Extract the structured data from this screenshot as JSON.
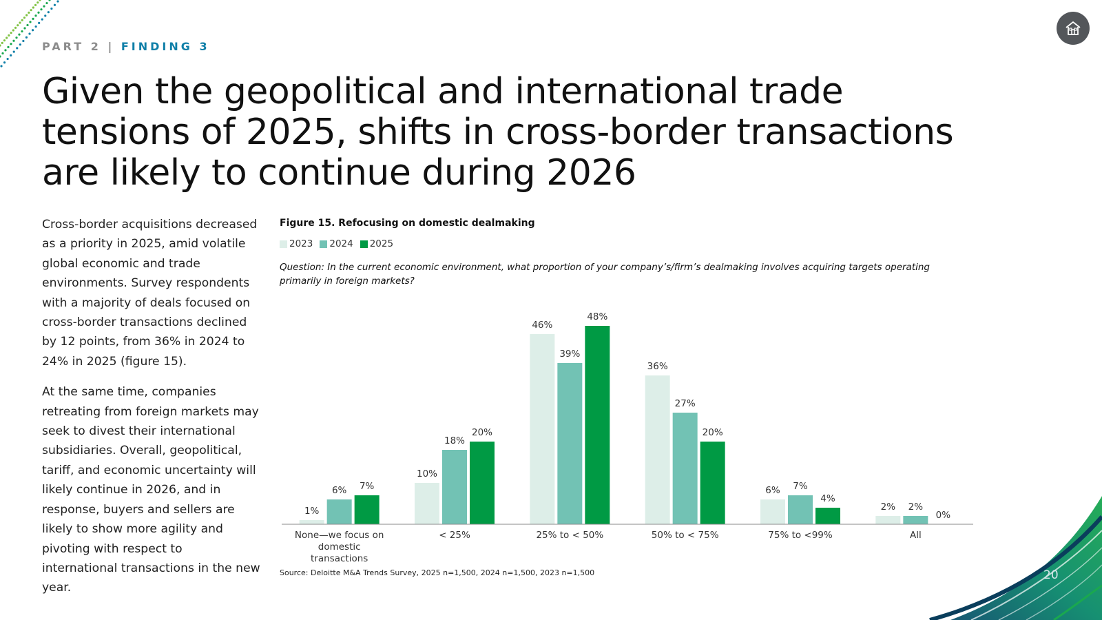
{
  "header": {
    "part": "PART 2",
    "separator": "|",
    "finding": "FINDING 3"
  },
  "title": "Given the geopolitical and international trade tensions of 2025, shifts in cross-border transactions are likely to continue during 2026",
  "body": {
    "paragraphs": [
      "Cross-border acquisitions decreased as a priority in 2025, amid volatile global economic and trade environments. Survey respondents with a majority of deals focused on cross-border transactions declined by 12 points, from 36% in 2024 to 24% in 2025 (figure 15).",
      "At the same time, companies retreating from foreign markets may seek to divest their international subsidiaries. Overall, geopolitical, tariff, and economic uncertainty will likely continue in 2026, and in response, buyers and sellers are likely to show more agility and pivoting with respect to international transactions in the new year."
    ]
  },
  "figure": {
    "title": "Figure 15. Refocusing on domestic dealmaking",
    "question": "Question: In the current economic environment, what proportion of your company’s/firm’s dealmaking involves acquiring targets operating primarily in foreign markets?",
    "source": "Source: Deloitte M&A Trends Survey, 2025 n=1,500, 2024 n=1,500, 2023 n=1,500"
  },
  "chart_data": {
    "type": "bar",
    "categories": [
      "None—we focus on domestic transactions",
      "< 25%",
      "25% to < 50%",
      "50% to < 75%",
      "75% to <99%",
      "All"
    ],
    "series": [
      {
        "name": "2023",
        "color": "#ddeee8",
        "values": [
          1,
          10,
          46,
          36,
          6,
          2
        ]
      },
      {
        "name": "2024",
        "color": "#72c2b4",
        "values": [
          6,
          18,
          39,
          27,
          7,
          2
        ]
      },
      {
        "name": "2025",
        "color": "#009a44",
        "values": [
          7,
          20,
          48,
          20,
          4,
          0
        ]
      }
    ],
    "value_suffix": "%",
    "ylim": [
      0,
      50
    ],
    "grid": false,
    "legend_position": "top-left"
  },
  "page_number": "20",
  "icons": {
    "home": "home-icon"
  },
  "colors": {
    "finding_accent": "#0f7fa8",
    "home_button": "#53565a"
  }
}
